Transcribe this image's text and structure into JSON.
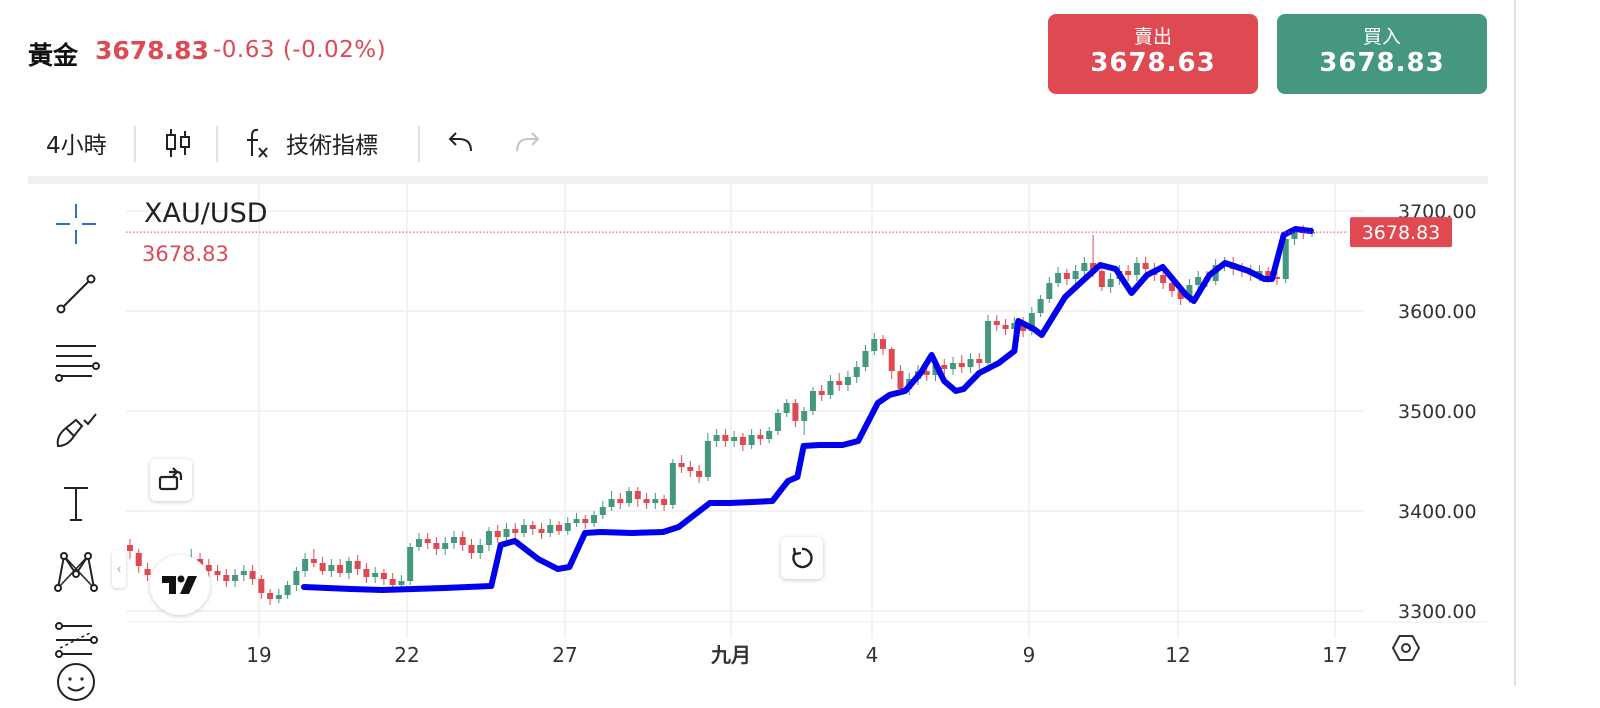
{
  "header": {
    "symbol": "黃金",
    "price": "3678.83",
    "change": "-0.63 (-0.02%)"
  },
  "trade": {
    "sell_label": "賣出",
    "sell_price": "3678.63",
    "buy_label": "買入",
    "buy_price": "3678.83"
  },
  "toolbar": {
    "interval": "4小時",
    "indicators_label": "技術指標"
  },
  "chart": {
    "pair": "XAU/USD",
    "last_price": "3678.83",
    "price_tag": "3678.83"
  },
  "colors": {
    "up": "#45977f",
    "down": "#df4a52",
    "accent_line": "#0000ee",
    "last_price_line": "#dd4a55"
  },
  "chart_data": {
    "type": "candlestick",
    "y_ticks": [
      3300,
      3400,
      3500,
      3600,
      3700
    ],
    "y_tick_labels": [
      "3300.00",
      "3400.00",
      "3500.00",
      "3600.00",
      "3700.00"
    ],
    "x_tick_labels": [
      "19",
      "22",
      "27",
      "九月",
      "4",
      "9",
      "12",
      "17"
    ],
    "ylim": [
      3275,
      3705
    ],
    "last_price": 3678.83,
    "candles": [
      [
        3366,
        3360,
        3372,
        3352
      ],
      [
        3358,
        3345,
        3362,
        3338
      ],
      [
        3342,
        3336,
        3348,
        3330
      ],
      [
        3338,
        3332,
        3344,
        3326
      ],
      [
        3330,
        3324,
        3336,
        3318
      ],
      [
        3325,
        3331,
        3338,
        3320
      ],
      [
        3331,
        3345,
        3350,
        3326
      ],
      [
        3345,
        3352,
        3362,
        3340
      ],
      [
        3352,
        3346,
        3358,
        3340
      ],
      [
        3346,
        3340,
        3352,
        3334
      ],
      [
        3340,
        3336,
        3346,
        3330
      ],
      [
        3336,
        3330,
        3342,
        3324
      ],
      [
        3330,
        3336,
        3342,
        3324
      ],
      [
        3336,
        3340,
        3346,
        3330
      ],
      [
        3340,
        3332,
        3346,
        3326
      ],
      [
        3332,
        3318,
        3336,
        3312
      ],
      [
        3318,
        3312,
        3322,
        3306
      ],
      [
        3312,
        3316,
        3322,
        3308
      ],
      [
        3316,
        3326,
        3330,
        3312
      ],
      [
        3326,
        3340,
        3344,
        3320
      ],
      [
        3340,
        3352,
        3358,
        3334
      ],
      [
        3352,
        3348,
        3362,
        3344
      ],
      [
        3348,
        3340,
        3354,
        3336
      ],
      [
        3340,
        3346,
        3352,
        3334
      ],
      [
        3346,
        3338,
        3352,
        3334
      ],
      [
        3338,
        3350,
        3354,
        3332
      ],
      [
        3350,
        3342,
        3356,
        3336
      ],
      [
        3342,
        3334,
        3348,
        3328
      ],
      [
        3334,
        3338,
        3344,
        3328
      ],
      [
        3338,
        3332,
        3342,
        3326
      ],
      [
        3332,
        3326,
        3338,
        3320
      ],
      [
        3326,
        3330,
        3336,
        3322
      ],
      [
        3330,
        3364,
        3368,
        3326
      ],
      [
        3364,
        3372,
        3378,
        3360
      ],
      [
        3372,
        3368,
        3378,
        3362
      ],
      [
        3368,
        3362,
        3374,
        3356
      ],
      [
        3362,
        3368,
        3374,
        3356
      ],
      [
        3368,
        3374,
        3380,
        3362
      ],
      [
        3374,
        3366,
        3380,
        3360
      ],
      [
        3366,
        3358,
        3372,
        3352
      ],
      [
        3358,
        3366,
        3372,
        3352
      ],
      [
        3366,
        3380,
        3384,
        3360
      ],
      [
        3380,
        3374,
        3386,
        3368
      ],
      [
        3374,
        3382,
        3388,
        3370
      ],
      [
        3382,
        3378,
        3388,
        3372
      ],
      [
        3378,
        3386,
        3392,
        3374
      ],
      [
        3386,
        3382,
        3390,
        3376
      ],
      [
        3382,
        3378,
        3388,
        3372
      ],
      [
        3378,
        3386,
        3392,
        3374
      ],
      [
        3386,
        3380,
        3390,
        3376
      ],
      [
        3380,
        3388,
        3394,
        3376
      ],
      [
        3388,
        3392,
        3398,
        3384
      ],
      [
        3392,
        3388,
        3396,
        3382
      ],
      [
        3388,
        3396,
        3400,
        3384
      ],
      [
        3396,
        3404,
        3410,
        3392
      ],
      [
        3404,
        3412,
        3420,
        3400
      ],
      [
        3412,
        3408,
        3418,
        3402
      ],
      [
        3408,
        3420,
        3424,
        3404
      ],
      [
        3420,
        3412,
        3424,
        3404
      ],
      [
        3412,
        3408,
        3418,
        3402
      ],
      [
        3408,
        3412,
        3418,
        3402
      ],
      [
        3412,
        3406,
        3416,
        3400
      ],
      [
        3406,
        3448,
        3452,
        3402
      ],
      [
        3448,
        3444,
        3456,
        3438
      ],
      [
        3444,
        3440,
        3450,
        3434
      ],
      [
        3440,
        3434,
        3446,
        3428
      ],
      [
        3434,
        3470,
        3478,
        3430
      ],
      [
        3470,
        3476,
        3482,
        3464
      ],
      [
        3476,
        3470,
        3482,
        3464
      ],
      [
        3470,
        3474,
        3480,
        3464
      ],
      [
        3474,
        3466,
        3478,
        3460
      ],
      [
        3466,
        3476,
        3482,
        3462
      ],
      [
        3476,
        3472,
        3482,
        3466
      ],
      [
        3472,
        3480,
        3484,
        3468
      ],
      [
        3480,
        3498,
        3502,
        3476
      ],
      [
        3498,
        3508,
        3512,
        3494
      ],
      [
        3508,
        3490,
        3512,
        3484
      ],
      [
        3490,
        3500,
        3504,
        3476
      ],
      [
        3500,
        3520,
        3524,
        3496
      ],
      [
        3520,
        3516,
        3526,
        3510
      ],
      [
        3516,
        3530,
        3536,
        3512
      ],
      [
        3530,
        3526,
        3538,
        3520
      ],
      [
        3526,
        3534,
        3540,
        3520
      ],
      [
        3534,
        3544,
        3550,
        3528
      ],
      [
        3544,
        3560,
        3566,
        3540
      ],
      [
        3560,
        3572,
        3578,
        3556
      ],
      [
        3572,
        3562,
        3576,
        3556
      ],
      [
        3562,
        3540,
        3564,
        3532
      ],
      [
        3540,
        3522,
        3546,
        3516
      ],
      [
        3522,
        3532,
        3538,
        3516
      ],
      [
        3532,
        3540,
        3546,
        3526
      ],
      [
        3540,
        3536,
        3546,
        3530
      ],
      [
        3536,
        3546,
        3552,
        3530
      ],
      [
        3546,
        3542,
        3552,
        3536
      ],
      [
        3542,
        3548,
        3554,
        3536
      ],
      [
        3548,
        3544,
        3556,
        3538
      ],
      [
        3544,
        3552,
        3558,
        3538
      ],
      [
        3552,
        3548,
        3558,
        3542
      ],
      [
        3548,
        3590,
        3596,
        3544
      ],
      [
        3590,
        3586,
        3596,
        3580
      ],
      [
        3586,
        3582,
        3592,
        3576
      ],
      [
        3582,
        3588,
        3594,
        3576
      ],
      [
        3588,
        3580,
        3594,
        3574
      ],
      [
        3580,
        3598,
        3604,
        3576
      ],
      [
        3598,
        3612,
        3616,
        3594
      ],
      [
        3612,
        3628,
        3634,
        3608
      ],
      [
        3628,
        3638,
        3644,
        3624
      ],
      [
        3638,
        3632,
        3642,
        3626
      ],
      [
        3632,
        3640,
        3646,
        3626
      ],
      [
        3640,
        3648,
        3654,
        3634
      ],
      [
        3648,
        3640,
        3676,
        3634
      ],
      [
        3640,
        3624,
        3644,
        3620
      ],
      [
        3624,
        3632,
        3638,
        3618
      ],
      [
        3632,
        3640,
        3646,
        3626
      ],
      [
        3640,
        3636,
        3646,
        3630
      ],
      [
        3636,
        3648,
        3654,
        3630
      ],
      [
        3648,
        3642,
        3654,
        3636
      ],
      [
        3642,
        3636,
        3648,
        3630
      ],
      [
        3636,
        3628,
        3640,
        3622
      ],
      [
        3628,
        3620,
        3632,
        3614
      ],
      [
        3620,
        3612,
        3626,
        3606
      ],
      [
        3612,
        3626,
        3632,
        3608
      ],
      [
        3626,
        3634,
        3640,
        3620
      ],
      [
        3634,
        3630,
        3640,
        3624
      ],
      [
        3630,
        3646,
        3652,
        3626
      ],
      [
        3646,
        3648,
        3654,
        3640
      ],
      [
        3648,
        3642,
        3654,
        3636
      ],
      [
        3642,
        3640,
        3648,
        3634
      ],
      [
        3640,
        3636,
        3646,
        3630
      ],
      [
        3636,
        3640,
        3646,
        3630
      ],
      [
        3640,
        3634,
        3644,
        3628
      ],
      [
        3634,
        3632,
        3640,
        3626
      ],
      [
        3632,
        3672,
        3680,
        3628
      ],
      [
        3672,
        3680,
        3684,
        3666
      ],
      [
        3680,
        3678,
        3686,
        3672
      ],
      [
        3678,
        3679,
        3684,
        3674
      ]
    ],
    "overlay_line": [
      [
        3324,
        0.0
      ],
      [
        3323,
        0.03
      ],
      [
        3322,
        0.06
      ],
      [
        3321,
        0.1
      ],
      [
        3322,
        0.14
      ],
      [
        3323,
        0.18
      ],
      [
        3324,
        0.21
      ],
      [
        3325,
        0.24
      ],
      [
        3366,
        0.252
      ],
      [
        3370,
        0.27
      ],
      [
        3352,
        0.3
      ],
      [
        3342,
        0.325
      ],
      [
        3344,
        0.34
      ],
      [
        3378,
        0.36
      ],
      [
        3379,
        0.38
      ],
      [
        3378,
        0.42
      ],
      [
        3379,
        0.46
      ],
      [
        3384,
        0.48
      ],
      [
        3396,
        0.5
      ],
      [
        3408,
        0.52
      ],
      [
        3408,
        0.545
      ],
      [
        3409,
        0.575
      ],
      [
        3410,
        0.6
      ],
      [
        3430,
        0.62
      ],
      [
        3434,
        0.632
      ],
      [
        3465,
        0.64
      ],
      [
        3466,
        0.66
      ],
      [
        3466,
        0.69
      ],
      [
        3470,
        0.71
      ],
      [
        3508,
        0.735
      ],
      [
        3516,
        0.75
      ],
      [
        3520,
        0.77
      ],
      [
        3538,
        0.79
      ],
      [
        3556,
        0.804
      ],
      [
        3530,
        0.82
      ],
      [
        3520,
        0.835
      ],
      [
        3522,
        0.845
      ],
      [
        3538,
        0.865
      ],
      [
        3548,
        0.89
      ],
      [
        3560,
        0.91
      ],
      [
        3590,
        0.915
      ],
      [
        3582,
        0.935
      ],
      [
        3576,
        0.945
      ],
      [
        3614,
        0.975
      ],
      [
        3632,
        1.0
      ],
      [
        3646,
        1.02
      ],
      [
        3642,
        1.04
      ],
      [
        3618,
        1.06
      ],
      [
        3636,
        1.08
      ],
      [
        3644,
        1.1
      ],
      [
        3616,
        1.13
      ],
      [
        3610,
        1.14
      ],
      [
        3636,
        1.16
      ],
      [
        3648,
        1.18
      ],
      [
        3640,
        1.21
      ],
      [
        3632,
        1.23
      ],
      [
        3632,
        1.24
      ],
      [
        3676,
        1.255
      ],
      [
        3682,
        1.27
      ],
      [
        3680,
        1.29
      ]
    ]
  }
}
